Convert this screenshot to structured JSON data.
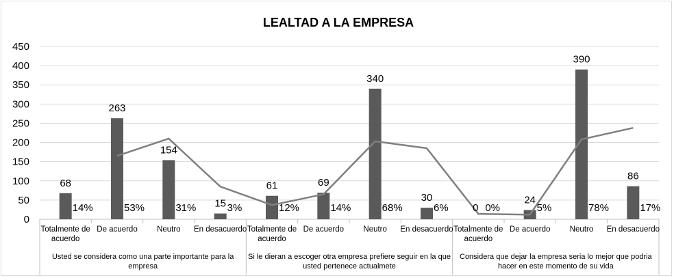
{
  "chart_data": {
    "type": "bar",
    "title": "LEALTAD A LA EMPRESA",
    "ylim": [
      0,
      450
    ],
    "yticks": [
      0,
      50,
      100,
      150,
      200,
      250,
      300,
      350,
      400,
      450
    ],
    "grid": true,
    "legend": "none",
    "bar_color": "#5a5a5a",
    "line_color": "#7f7f7f",
    "groups": [
      {
        "label": [
          "Usted se considera como una parte importante para la",
          "empresa"
        ],
        "categories": [
          [
            "Totalmente de",
            "acuerdo"
          ],
          [
            "De acuerdo"
          ],
          [
            "Neutro"
          ],
          [
            "En desacuerdo"
          ]
        ],
        "values": [
          68,
          263,
          154,
          15
        ],
        "percent_labels": [
          "14%",
          "53%",
          "31%",
          "3%"
        ]
      },
      {
        "label": [
          "Si le dieran a escoger otra empresa prefiere seguir en la que",
          "usted pertenece actualmete"
        ],
        "categories": [
          [
            "Totalmente de",
            "acuerdo"
          ],
          [
            "De acuerdo"
          ],
          [
            "Neutro"
          ],
          [
            "En desacuerdo"
          ]
        ],
        "values": [
          61,
          69,
          340,
          30
        ],
        "percent_labels": [
          "12%",
          "14%",
          "68%",
          "6%"
        ]
      },
      {
        "label": [
          "Considera que dejar la empresa seria lo mejor que podria",
          "hacer en este momento de su vida"
        ],
        "categories": [
          [
            "Totalmente de",
            "acuerdo"
          ],
          [
            "De acuerdo"
          ],
          [
            "Neutro"
          ],
          [
            "En desacuerdo"
          ]
        ],
        "values": [
          0,
          24,
          390,
          86
        ],
        "percent_labels": [
          "0%",
          "5%",
          "78%",
          "17%"
        ]
      }
    ],
    "line_series": {
      "values": [
        null,
        165,
        210,
        85,
        37,
        65,
        203,
        185,
        14,
        12,
        208,
        238
      ]
    }
  }
}
